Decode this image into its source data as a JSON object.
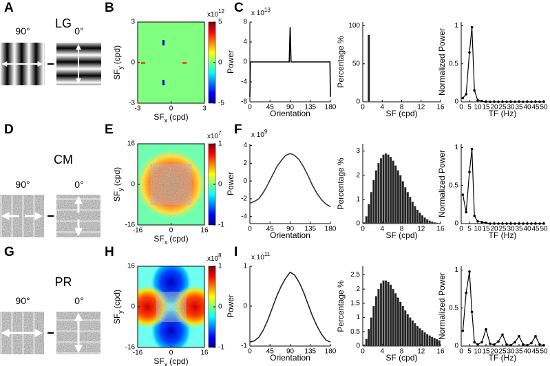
{
  "rows": [
    {
      "letters": [
        "A",
        "B",
        "C"
      ],
      "name": "LG",
      "stimuli": [
        "90°",
        "0°"
      ]
    },
    {
      "letters": [
        "D",
        "E",
        "F"
      ],
      "name": "CM",
      "stimuli": [
        "90°",
        "0°"
      ]
    },
    {
      "letters": [
        "G",
        "H",
        "I"
      ],
      "name": "PR",
      "stimuli": [
        "90°",
        "0°"
      ]
    }
  ],
  "chart_data": [
    {
      "type": "heatmap",
      "xlabel": {
        "main": "SF",
        "sub": "x",
        "unit": "(cpd)"
      },
      "ylabel": {
        "main": "SF",
        "sub": "y",
        "unit": "(cpd)"
      },
      "xlim": [
        -3,
        3
      ],
      "xticks": [
        -3,
        0,
        3
      ],
      "ylim": [
        -3,
        3
      ],
      "yticks": [
        -3,
        0,
        3
      ],
      "clim": [
        -5,
        5
      ],
      "cticks": [
        -5,
        0,
        5
      ],
      "c_exponent": {
        "prefix": "x10",
        "power": "12"
      }
    },
    {
      "type": "line",
      "xlabel": "Orientation",
      "ylabel": "Power",
      "xlim": [
        0,
        180
      ],
      "xticks": [
        0,
        45,
        90,
        135,
        180
      ],
      "ylim": [
        -8,
        8
      ],
      "yticks": [
        -8,
        -4,
        0,
        4,
        8
      ],
      "y_exponent": {
        "prefix": "x 10",
        "power": "13"
      },
      "color": "#000000",
      "markers": false,
      "x": [
        0,
        1,
        2,
        88,
        90,
        92,
        178,
        179,
        180
      ],
      "values": [
        -7,
        0,
        0,
        0,
        7,
        0,
        0,
        0,
        -7
      ]
    },
    {
      "type": "histogram",
      "xlabel": "SF (cpd)",
      "ylabel": "Percentage %",
      "xlim": [
        0,
        16
      ],
      "xticks": [
        0,
        4,
        8,
        12,
        16
      ],
      "ylim": [
        0,
        105
      ],
      "yticks": [
        0,
        50,
        100
      ],
      "color": "#222222",
      "bins": [
        0,
        0.5,
        1,
        1.5,
        2,
        2.5,
        3,
        3.5,
        4,
        4.5,
        5,
        5.5,
        6,
        6.5,
        7,
        7.5,
        8,
        8.5,
        9,
        9.5,
        10,
        10.5,
        11,
        11.5,
        12,
        12.5,
        13,
        13.5,
        14,
        14.5,
        15,
        15.5,
        16
      ],
      "values": [
        0,
        0,
        88,
        0,
        0,
        0,
        0,
        0,
        0,
        0,
        0,
        0,
        0,
        0,
        0,
        0,
        0,
        0,
        0,
        0,
        0,
        0,
        0,
        0,
        0,
        0,
        0,
        0,
        0,
        0,
        0,
        0
      ]
    },
    {
      "type": "line",
      "xlabel": "TF (Hz)",
      "ylabel": "Normalized Power",
      "xlim": [
        0,
        50
      ],
      "xticks": [
        0,
        5,
        10,
        15,
        20,
        25,
        30,
        35,
        40,
        45,
        50
      ],
      "ylim": [
        0,
        1.05
      ],
      "yticks": [
        0,
        0.5,
        1
      ],
      "color": "#000000",
      "markers": true,
      "x": [
        1,
        3,
        5,
        6.5,
        8,
        10,
        12.5,
        15,
        17.5,
        20,
        22.5,
        25,
        27.5,
        30,
        32.5,
        35,
        37.5,
        40,
        42.5,
        45,
        47.5,
        50
      ],
      "values": [
        0.05,
        0.1,
        0.65,
        0.98,
        0.15,
        0.02,
        0.01,
        0,
        0,
        0,
        0,
        0,
        0,
        0,
        0,
        0,
        0,
        0,
        0,
        0,
        0,
        0
      ]
    },
    {
      "type": "heatmap",
      "xlabel": {
        "main": "SF",
        "sub": "x",
        "unit": "(cpd)"
      },
      "ylabel": {
        "main": "SF",
        "sub": "y",
        "unit": "(cpd)"
      },
      "xlim": [
        -16,
        16
      ],
      "xticks": [
        -16,
        0,
        16
      ],
      "ylim": [
        -16,
        16
      ],
      "yticks": [
        -16,
        0,
        16
      ],
      "clim": [
        -1,
        1
      ],
      "cticks": [
        -1,
        0,
        1
      ],
      "c_exponent": {
        "prefix": "x10",
        "power": "7"
      }
    },
    {
      "type": "line",
      "xlabel": "Orientation",
      "ylabel": "Power",
      "xlim": [
        0,
        180
      ],
      "xticks": [
        0,
        45,
        90,
        135,
        180
      ],
      "ylim": [
        -4.8,
        4.2
      ],
      "yticks": [
        -4,
        -2,
        0,
        2,
        4
      ],
      "y_exponent": {
        "prefix": "x 10",
        "power": "9"
      },
      "color": "#333333",
      "markers": false,
      "x": [
        0,
        10,
        20,
        30,
        40,
        50,
        60,
        70,
        80,
        90,
        100,
        110,
        120,
        130,
        140,
        150,
        160,
        170,
        180
      ],
      "values": [
        -2.5,
        -2.3,
        -2.0,
        -1.3,
        -0.4,
        0.6,
        1.6,
        2.3,
        2.9,
        3.1,
        2.9,
        2.4,
        1.6,
        0.6,
        -0.5,
        -1.4,
        -2.1,
        -2.6,
        -2.9
      ]
    },
    {
      "type": "histogram",
      "xlabel": "SF (cpd)",
      "ylabel": "Percentage %",
      "xlim": [
        0,
        16
      ],
      "xticks": [
        0,
        4,
        8,
        12,
        16
      ],
      "ylim": [
        0,
        3.3
      ],
      "yticks": [
        0,
        1,
        2,
        3
      ],
      "color": "#222222",
      "bins": [
        0,
        0.5,
        1,
        1.5,
        2,
        2.5,
        3,
        3.5,
        4,
        4.5,
        5,
        5.5,
        6,
        6.5,
        7,
        7.5,
        8,
        8.5,
        9,
        9.5,
        10,
        10.5,
        11,
        11.5,
        12,
        12.5,
        13,
        13.5,
        14,
        14.5,
        15,
        15.5,
        16
      ],
      "values": [
        0.05,
        0.3,
        0.8,
        1.3,
        1.8,
        2.2,
        2.5,
        2.7,
        2.85,
        2.9,
        2.85,
        2.75,
        2.6,
        2.4,
        2.2,
        2.0,
        1.75,
        1.5,
        1.3,
        1.1,
        0.9,
        0.72,
        0.57,
        0.45,
        0.34,
        0.25,
        0.18,
        0.12,
        0.08,
        0.05,
        0.03,
        0.02
      ]
    },
    {
      "type": "line",
      "xlabel": "TF (Hz)",
      "ylabel": "Normalized Power",
      "xlim": [
        0,
        50
      ],
      "xticks": [
        0,
        5,
        10,
        15,
        20,
        25,
        30,
        35,
        40,
        45,
        50
      ],
      "ylim": [
        0,
        1.05
      ],
      "yticks": [
        0,
        0.5,
        1
      ],
      "color": "#000000",
      "markers": true,
      "x": [
        1,
        3,
        5,
        6.5,
        8,
        10,
        12.5,
        15,
        17.5,
        20,
        22.5,
        25,
        27.5,
        30,
        32.5,
        35,
        37.5,
        40,
        42.5,
        45,
        47.5,
        50
      ],
      "values": [
        0.38,
        0.15,
        0.68,
        0.98,
        0.1,
        0.03,
        0.02,
        0.01,
        0,
        0,
        0,
        0,
        0,
        0,
        0,
        0,
        0,
        0,
        0,
        0,
        0,
        0
      ]
    },
    {
      "type": "heatmap",
      "xlabel": {
        "main": "SF",
        "sub": "x",
        "unit": "(cpd)"
      },
      "ylabel": {
        "main": "SF",
        "sub": "y",
        "unit": "(cpd)"
      },
      "xlim": [
        -16,
        16
      ],
      "xticks": [
        -16,
        0,
        16
      ],
      "ylim": [
        -16,
        16
      ],
      "yticks": [
        -16,
        0,
        16
      ],
      "clim": [
        -1,
        1
      ],
      "cticks": [
        -1,
        0,
        1
      ],
      "c_exponent": {
        "prefix": "x10",
        "power": "8"
      }
    },
    {
      "type": "line",
      "xlabel": "Orientation",
      "ylabel": "Power",
      "xlim": [
        0,
        180
      ],
      "xticks": [
        0,
        45,
        90,
        135,
        180
      ],
      "ylim": [
        -1,
        1
      ],
      "yticks": [
        -1,
        0,
        1
      ],
      "y_exponent": {
        "prefix": "x 10",
        "power": "11"
      },
      "color": "#222222",
      "markers": false,
      "x": [
        0,
        10,
        20,
        30,
        40,
        50,
        60,
        70,
        80,
        90,
        100,
        110,
        120,
        130,
        140,
        150,
        160,
        170,
        180
      ],
      "values": [
        -0.9,
        -0.87,
        -0.78,
        -0.6,
        -0.35,
        -0.05,
        0.25,
        0.5,
        0.7,
        0.85,
        0.78,
        0.6,
        0.35,
        0.05,
        -0.25,
        -0.5,
        -0.7,
        -0.85,
        -0.9
      ]
    },
    {
      "type": "histogram",
      "xlabel": "SF (cpd)",
      "ylabel": "Percentage %",
      "xlim": [
        0,
        16
      ],
      "xticks": [
        0,
        4,
        8,
        12,
        16
      ],
      "ylim": [
        0,
        2.8
      ],
      "yticks": [
        0,
        0.5,
        1,
        1.5,
        2,
        2.5
      ],
      "color": "#222222",
      "bins": [
        0,
        0.5,
        1,
        1.5,
        2,
        2.5,
        3,
        3.5,
        4,
        4.5,
        5,
        5.5,
        6,
        6.5,
        7,
        7.5,
        8,
        8.5,
        9,
        9.5,
        10,
        10.5,
        11,
        11.5,
        12,
        12.5,
        13,
        13.5,
        14,
        14.5,
        15,
        15.5,
        16
      ],
      "values": [
        0.05,
        0.25,
        0.6,
        1.0,
        1.4,
        1.75,
        2.0,
        2.2,
        2.3,
        2.3,
        2.25,
        2.15,
        2.0,
        1.85,
        1.7,
        1.55,
        1.4,
        1.25,
        1.12,
        1.0,
        0.9,
        0.8,
        0.7,
        0.62,
        0.55,
        0.48,
        0.42,
        0.37,
        0.32,
        0.28,
        0.24,
        0.2
      ]
    },
    {
      "type": "line",
      "xlabel": "TF (Hz)",
      "ylabel": "Normalized Power",
      "xlim": [
        0,
        50
      ],
      "xticks": [
        0,
        5,
        10,
        15,
        20,
        25,
        30,
        35,
        40,
        45,
        50
      ],
      "ylim": [
        0,
        1.05
      ],
      "yticks": [
        0,
        0.5,
        1
      ],
      "color": "#000000",
      "markers": true,
      "x": [
        1,
        3,
        5,
        6.5,
        8,
        10,
        12.5,
        15,
        17.5,
        20,
        22.5,
        25,
        27.5,
        30,
        32.5,
        35,
        37.5,
        40,
        42.5,
        45,
        47.5,
        50
      ],
      "values": [
        0.2,
        0.7,
        0.98,
        0.45,
        0.05,
        0.02,
        0.05,
        0.22,
        0.03,
        0.02,
        0.06,
        0.15,
        0.02,
        0.01,
        0.05,
        0.13,
        0.02,
        0.01,
        0.04,
        0.13,
        0.02,
        0.01
      ]
    }
  ]
}
